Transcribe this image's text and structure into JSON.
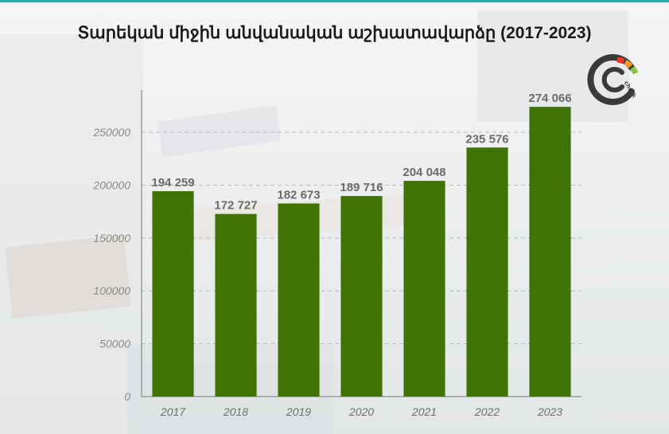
{
  "colors": {
    "bar": "#3f7306",
    "gridline": "#b9bcc0",
    "title": "#1a1a1a",
    "accent_top": "#2ca8a8"
  },
  "logo": {
    "name": "cc-check-logo",
    "text": "check"
  },
  "chart_data": {
    "type": "bar",
    "title": "Տարեկան միջին անվանական աշխատավարձը (2017-2023)",
    "xlabel": "",
    "ylabel": "",
    "categories": [
      "2017",
      "2018",
      "2019",
      "2020",
      "2021",
      "2022",
      "2023"
    ],
    "values": [
      194259,
      172727,
      182673,
      189716,
      204048,
      235576,
      274066
    ],
    "value_labels": [
      "194 259",
      "172 727",
      "182 673",
      "189 716",
      "204 048",
      "235 576",
      "274 066"
    ],
    "ylim": [
      0,
      290000
    ],
    "yticks": [
      0,
      50000,
      100000,
      150000,
      200000,
      250000
    ],
    "ytick_labels": [
      "0",
      "50000",
      "100000",
      "150000",
      "200000",
      "250000"
    ],
    "grid": "horizontal dashed",
    "legend": "none"
  }
}
